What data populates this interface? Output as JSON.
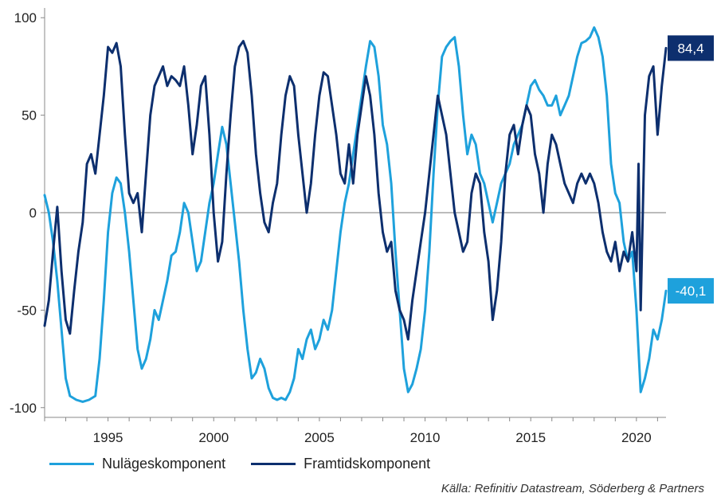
{
  "chart_data": {
    "type": "line",
    "title": "",
    "xlabel": "",
    "ylabel": "",
    "xlim": [
      1992.0,
      2021.4
    ],
    "ylim": [
      -105,
      105
    ],
    "y_ticks": [
      100,
      50,
      0,
      -50,
      -100
    ],
    "y_tick_labels": [
      "100",
      "50",
      "0",
      "-50",
      "-100"
    ],
    "x_ticks": [
      1995,
      2000,
      2005,
      2010,
      2015,
      2020
    ],
    "x_tick_labels": [
      "1995",
      "2000",
      "2005",
      "2010",
      "2015",
      "2020"
    ],
    "zero_line": true,
    "grid": false,
    "legend_position": "bottom-left",
    "series": [
      {
        "name": "Nulägeskomponent",
        "color": "#1ea1dc",
        "end_label": "-40,1",
        "points": [
          [
            1992.0,
            9
          ],
          [
            1992.2,
            0
          ],
          [
            1992.4,
            -15
          ],
          [
            1992.6,
            -35
          ],
          [
            1992.8,
            -60
          ],
          [
            1993.0,
            -85
          ],
          [
            1993.2,
            -94
          ],
          [
            1993.5,
            -96
          ],
          [
            1993.8,
            -97
          ],
          [
            1994.1,
            -96
          ],
          [
            1994.4,
            -94
          ],
          [
            1994.6,
            -75
          ],
          [
            1994.8,
            -45
          ],
          [
            1995.0,
            -10
          ],
          [
            1995.2,
            10
          ],
          [
            1995.4,
            18
          ],
          [
            1995.6,
            15
          ],
          [
            1995.8,
            0
          ],
          [
            1996.0,
            -20
          ],
          [
            1996.2,
            -45
          ],
          [
            1996.4,
            -70
          ],
          [
            1996.6,
            -80
          ],
          [
            1996.8,
            -75
          ],
          [
            1997.0,
            -65
          ],
          [
            1997.2,
            -50
          ],
          [
            1997.4,
            -55
          ],
          [
            1997.6,
            -45
          ],
          [
            1997.8,
            -35
          ],
          [
            1998.0,
            -22
          ],
          [
            1998.2,
            -20
          ],
          [
            1998.4,
            -10
          ],
          [
            1998.6,
            5
          ],
          [
            1998.8,
            0
          ],
          [
            1999.0,
            -15
          ],
          [
            1999.2,
            -30
          ],
          [
            1999.4,
            -25
          ],
          [
            1999.6,
            -10
          ],
          [
            1999.8,
            5
          ],
          [
            2000.0,
            15
          ],
          [
            2000.2,
            30
          ],
          [
            2000.4,
            44
          ],
          [
            2000.6,
            35
          ],
          [
            2000.8,
            15
          ],
          [
            2001.0,
            -5
          ],
          [
            2001.2,
            -25
          ],
          [
            2001.4,
            -50
          ],
          [
            2001.6,
            -70
          ],
          [
            2001.8,
            -85
          ],
          [
            2002.0,
            -82
          ],
          [
            2002.2,
            -75
          ],
          [
            2002.4,
            -80
          ],
          [
            2002.6,
            -90
          ],
          [
            2002.8,
            -95
          ],
          [
            2003.0,
            -96
          ],
          [
            2003.2,
            -95
          ],
          [
            2003.4,
            -96
          ],
          [
            2003.6,
            -92
          ],
          [
            2003.8,
            -85
          ],
          [
            2004.0,
            -70
          ],
          [
            2004.2,
            -75
          ],
          [
            2004.4,
            -65
          ],
          [
            2004.6,
            -60
          ],
          [
            2004.8,
            -70
          ],
          [
            2005.0,
            -65
          ],
          [
            2005.2,
            -55
          ],
          [
            2005.4,
            -60
          ],
          [
            2005.6,
            -50
          ],
          [
            2005.8,
            -30
          ],
          [
            2006.0,
            -10
          ],
          [
            2006.2,
            5
          ],
          [
            2006.4,
            15
          ],
          [
            2006.6,
            30
          ],
          [
            2006.8,
            45
          ],
          [
            2007.0,
            60
          ],
          [
            2007.2,
            75
          ],
          [
            2007.4,
            88
          ],
          [
            2007.6,
            85
          ],
          [
            2007.8,
            70
          ],
          [
            2008.0,
            45
          ],
          [
            2008.2,
            35
          ],
          [
            2008.4,
            15
          ],
          [
            2008.6,
            -20
          ],
          [
            2008.8,
            -50
          ],
          [
            2009.0,
            -80
          ],
          [
            2009.2,
            -92
          ],
          [
            2009.4,
            -88
          ],
          [
            2009.6,
            -80
          ],
          [
            2009.8,
            -70
          ],
          [
            2010.0,
            -50
          ],
          [
            2010.2,
            -20
          ],
          [
            2010.4,
            20
          ],
          [
            2010.6,
            55
          ],
          [
            2010.8,
            80
          ],
          [
            2011.0,
            85
          ],
          [
            2011.2,
            88
          ],
          [
            2011.4,
            90
          ],
          [
            2011.6,
            75
          ],
          [
            2011.8,
            50
          ],
          [
            2012.0,
            30
          ],
          [
            2012.2,
            40
          ],
          [
            2012.4,
            35
          ],
          [
            2012.6,
            20
          ],
          [
            2012.8,
            15
          ],
          [
            2013.0,
            5
          ],
          [
            2013.2,
            -5
          ],
          [
            2013.4,
            5
          ],
          [
            2013.6,
            15
          ],
          [
            2013.8,
            20
          ],
          [
            2014.0,
            25
          ],
          [
            2014.2,
            35
          ],
          [
            2014.4,
            40
          ],
          [
            2014.6,
            45
          ],
          [
            2014.8,
            55
          ],
          [
            2015.0,
            65
          ],
          [
            2015.2,
            68
          ],
          [
            2015.4,
            63
          ],
          [
            2015.6,
            60
          ],
          [
            2015.8,
            55
          ],
          [
            2016.0,
            55
          ],
          [
            2016.2,
            60
          ],
          [
            2016.4,
            50
          ],
          [
            2016.6,
            55
          ],
          [
            2016.8,
            60
          ],
          [
            2017.0,
            70
          ],
          [
            2017.2,
            80
          ],
          [
            2017.4,
            87
          ],
          [
            2017.6,
            88
          ],
          [
            2017.8,
            90
          ],
          [
            2018.0,
            95
          ],
          [
            2018.2,
            90
          ],
          [
            2018.4,
            80
          ],
          [
            2018.6,
            60
          ],
          [
            2018.8,
            25
          ],
          [
            2019.0,
            10
          ],
          [
            2019.2,
            5
          ],
          [
            2019.4,
            -15
          ],
          [
            2019.6,
            -25
          ],
          [
            2019.8,
            -20
          ],
          [
            2020.0,
            -50
          ],
          [
            2020.2,
            -92
          ],
          [
            2020.4,
            -85
          ],
          [
            2020.6,
            -75
          ],
          [
            2020.8,
            -60
          ],
          [
            2021.0,
            -65
          ],
          [
            2021.2,
            -55
          ],
          [
            2021.4,
            -40.1
          ]
        ]
      },
      {
        "name": "Framtidskomponent",
        "color": "#0d2f6e",
        "end_label": "84,4",
        "points": [
          [
            1992.0,
            -58
          ],
          [
            1992.2,
            -45
          ],
          [
            1992.4,
            -20
          ],
          [
            1992.6,
            3
          ],
          [
            1992.8,
            -30
          ],
          [
            1993.0,
            -55
          ],
          [
            1993.2,
            -62
          ],
          [
            1993.4,
            -40
          ],
          [
            1993.6,
            -20
          ],
          [
            1993.8,
            -5
          ],
          [
            1994.0,
            25
          ],
          [
            1994.2,
            30
          ],
          [
            1994.4,
            20
          ],
          [
            1994.6,
            40
          ],
          [
            1994.8,
            60
          ],
          [
            1995.0,
            85
          ],
          [
            1995.2,
            82
          ],
          [
            1995.4,
            87
          ],
          [
            1995.6,
            75
          ],
          [
            1995.8,
            40
          ],
          [
            1996.0,
            10
          ],
          [
            1996.2,
            5
          ],
          [
            1996.4,
            10
          ],
          [
            1996.6,
            -10
          ],
          [
            1996.8,
            20
          ],
          [
            1997.0,
            50
          ],
          [
            1997.2,
            65
          ],
          [
            1997.4,
            70
          ],
          [
            1997.6,
            75
          ],
          [
            1997.8,
            65
          ],
          [
            1998.0,
            70
          ],
          [
            1998.2,
            68
          ],
          [
            1998.4,
            65
          ],
          [
            1998.6,
            75
          ],
          [
            1998.8,
            55
          ],
          [
            1999.0,
            30
          ],
          [
            1999.2,
            45
          ],
          [
            1999.4,
            65
          ],
          [
            1999.6,
            70
          ],
          [
            1999.8,
            40
          ],
          [
            2000.0,
            0
          ],
          [
            2000.2,
            -25
          ],
          [
            2000.4,
            -15
          ],
          [
            2000.6,
            20
          ],
          [
            2000.8,
            50
          ],
          [
            2001.0,
            75
          ],
          [
            2001.2,
            85
          ],
          [
            2001.4,
            88
          ],
          [
            2001.6,
            82
          ],
          [
            2001.8,
            60
          ],
          [
            2002.0,
            30
          ],
          [
            2002.2,
            10
          ],
          [
            2002.4,
            -5
          ],
          [
            2002.6,
            -10
          ],
          [
            2002.8,
            5
          ],
          [
            2003.0,
            15
          ],
          [
            2003.2,
            40
          ],
          [
            2003.4,
            60
          ],
          [
            2003.6,
            70
          ],
          [
            2003.8,
            65
          ],
          [
            2004.0,
            40
          ],
          [
            2004.2,
            20
          ],
          [
            2004.4,
            0
          ],
          [
            2004.6,
            15
          ],
          [
            2004.8,
            40
          ],
          [
            2005.0,
            60
          ],
          [
            2005.2,
            72
          ],
          [
            2005.4,
            70
          ],
          [
            2005.6,
            55
          ],
          [
            2005.8,
            40
          ],
          [
            2006.0,
            20
          ],
          [
            2006.2,
            15
          ],
          [
            2006.4,
            35
          ],
          [
            2006.6,
            15
          ],
          [
            2006.8,
            40
          ],
          [
            2007.0,
            55
          ],
          [
            2007.2,
            70
          ],
          [
            2007.4,
            60
          ],
          [
            2007.6,
            40
          ],
          [
            2007.8,
            10
          ],
          [
            2008.0,
            -10
          ],
          [
            2008.2,
            -20
          ],
          [
            2008.4,
            -15
          ],
          [
            2008.6,
            -40
          ],
          [
            2008.8,
            -50
          ],
          [
            2009.0,
            -55
          ],
          [
            2009.2,
            -65
          ],
          [
            2009.4,
            -45
          ],
          [
            2009.6,
            -30
          ],
          [
            2009.8,
            -15
          ],
          [
            2010.0,
            0
          ],
          [
            2010.2,
            20
          ],
          [
            2010.4,
            40
          ],
          [
            2010.6,
            60
          ],
          [
            2010.8,
            50
          ],
          [
            2011.0,
            40
          ],
          [
            2011.2,
            20
          ],
          [
            2011.4,
            0
          ],
          [
            2011.6,
            -10
          ],
          [
            2011.8,
            -20
          ],
          [
            2012.0,
            -15
          ],
          [
            2012.2,
            10
          ],
          [
            2012.4,
            20
          ],
          [
            2012.6,
            15
          ],
          [
            2012.8,
            -10
          ],
          [
            2013.0,
            -25
          ],
          [
            2013.2,
            -55
          ],
          [
            2013.4,
            -40
          ],
          [
            2013.6,
            -15
          ],
          [
            2013.8,
            20
          ],
          [
            2014.0,
            40
          ],
          [
            2014.2,
            45
          ],
          [
            2014.4,
            30
          ],
          [
            2014.6,
            45
          ],
          [
            2014.8,
            55
          ],
          [
            2015.0,
            50
          ],
          [
            2015.2,
            30
          ],
          [
            2015.4,
            20
          ],
          [
            2015.6,
            0
          ],
          [
            2015.8,
            25
          ],
          [
            2016.0,
            40
          ],
          [
            2016.2,
            35
          ],
          [
            2016.4,
            25
          ],
          [
            2016.6,
            15
          ],
          [
            2016.8,
            10
          ],
          [
            2017.0,
            5
          ],
          [
            2017.2,
            15
          ],
          [
            2017.4,
            20
          ],
          [
            2017.6,
            15
          ],
          [
            2017.8,
            20
          ],
          [
            2018.0,
            15
          ],
          [
            2018.2,
            5
          ],
          [
            2018.4,
            -10
          ],
          [
            2018.6,
            -20
          ],
          [
            2018.8,
            -25
          ],
          [
            2019.0,
            -15
          ],
          [
            2019.2,
            -30
          ],
          [
            2019.4,
            -20
          ],
          [
            2019.6,
            -25
          ],
          [
            2019.8,
            -10
          ],
          [
            2020.0,
            -30
          ],
          [
            2020.1,
            25
          ],
          [
            2020.2,
            -50
          ],
          [
            2020.4,
            50
          ],
          [
            2020.6,
            70
          ],
          [
            2020.8,
            75
          ],
          [
            2021.0,
            40
          ],
          [
            2021.2,
            65
          ],
          [
            2021.4,
            84.4
          ]
        ]
      }
    ],
    "source": "Källa: Refinitiv Datastream, Söderberg & Partners"
  },
  "legend": {
    "items": [
      {
        "label": "Nulägeskomponent",
        "color": "#1ea1dc"
      },
      {
        "label": "Framtidskomponent",
        "color": "#0d2f6e"
      }
    ]
  }
}
